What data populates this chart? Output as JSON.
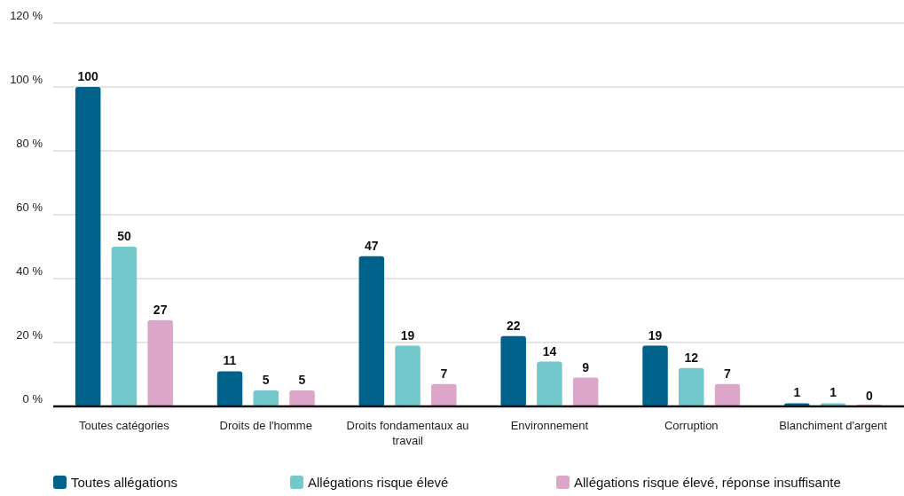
{
  "chart_data": {
    "type": "bar",
    "categories": [
      "Toutes catégories",
      "Droits de l'homme",
      "Droits fondamentaux au travail",
      "Environnement",
      "Corruption",
      "Blanchiment d'argent"
    ],
    "series": [
      {
        "name": "Toutes allégations",
        "color": "#00628b",
        "values": [
          100,
          11,
          47,
          22,
          19,
          1
        ]
      },
      {
        "name": "Allégations risque élevé",
        "color": "#73c8cc",
        "values": [
          50,
          5,
          19,
          14,
          12,
          1
        ]
      },
      {
        "name": "Allégations risque élevé, réponse insuffisante",
        "color": "#dca6c9",
        "values": [
          27,
          5,
          7,
          9,
          7,
          0
        ]
      }
    ],
    "ylim": [
      0,
      120
    ],
    "yticks": [
      {
        "value": 0,
        "label": "0 %"
      },
      {
        "value": 20,
        "label": "20 %"
      },
      {
        "value": 40,
        "label": "40 %"
      },
      {
        "value": 60,
        "label": "60 %"
      },
      {
        "value": 80,
        "label": "80 %"
      },
      {
        "value": 100,
        "label": "100 %"
      },
      {
        "value": 120,
        "label": "120 %"
      }
    ],
    "grid": "y",
    "legend": "bottom",
    "data_labels": true
  }
}
